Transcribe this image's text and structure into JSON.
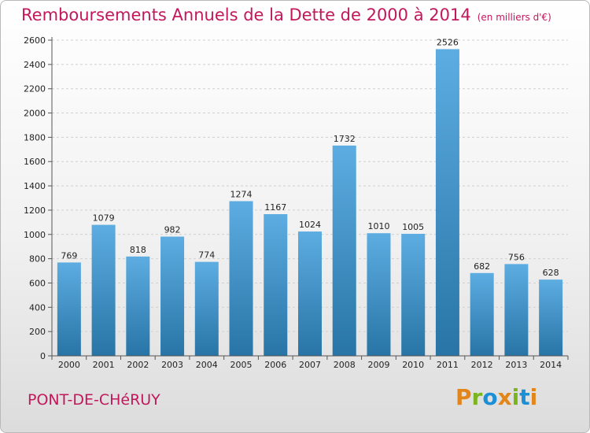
{
  "header": {
    "title": "Remboursements Annuels de la Dette de 2000 à 2014",
    "unit": "(en milliers d'€)"
  },
  "footer": {
    "commune": "PONT-DE-CHéRUY",
    "brand_letters": [
      {
        "char": "P",
        "color": "#e2851a"
      },
      {
        "char": "r",
        "color": "#7ab51d"
      },
      {
        "char": "o",
        "color": "#1c8fd6"
      },
      {
        "char": "x",
        "color": "#e2851a"
      },
      {
        "char": "i",
        "color": "#7ab51d"
      },
      {
        "char": "t",
        "color": "#1c8fd6"
      },
      {
        "char": "i",
        "color": "#e2851a"
      }
    ]
  },
  "chart_data": {
    "type": "bar",
    "title": "Remboursements Annuels de la Dette de 2000 à 2014",
    "categories": [
      "2000",
      "2001",
      "2002",
      "2003",
      "2004",
      "2005",
      "2006",
      "2007",
      "2008",
      "2009",
      "2010",
      "2011",
      "2012",
      "2013",
      "2014"
    ],
    "values": [
      769,
      1079,
      818,
      982,
      774,
      1274,
      1167,
      1024,
      1732,
      1010,
      1005,
      2526,
      682,
      756,
      628
    ],
    "ylim": [
      0,
      2600
    ],
    "yticks": [
      0,
      200,
      400,
      600,
      800,
      1000,
      1200,
      1400,
      1600,
      1800,
      2000,
      2200,
      2400,
      2600
    ],
    "grid": true,
    "bar_color_top": "#5dade2",
    "bar_color_bottom": "#2874a6"
  }
}
